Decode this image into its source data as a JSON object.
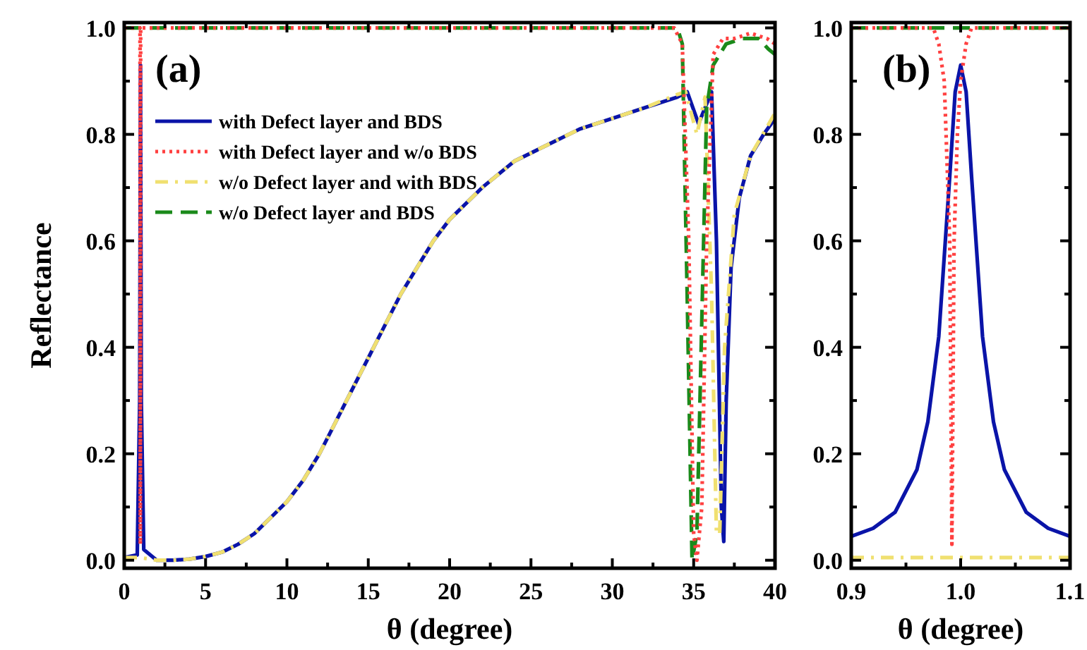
{
  "chart_data": [
    {
      "type": "line",
      "title": "(a)",
      "xlabel": "θ (degree)",
      "ylabel": "Reflectance",
      "legend": "top left",
      "xlim": [
        0,
        40
      ],
      "ylim": [
        -0.015,
        1.01
      ],
      "xticks": [
        0,
        {
          "value": 2.5,
          "label": null
        },
        5,
        {
          "value": 7.5,
          "label": null
        },
        10,
        {
          "value": 12.5,
          "label": null
        },
        15,
        {
          "value": 17.5,
          "label": null
        },
        20,
        {
          "value": 22.5,
          "label": null
        },
        25,
        {
          "value": 27.5,
          "label": null
        },
        30,
        {
          "value": 32.5,
          "label": null
        },
        35,
        {
          "value": 37.5,
          "label": null
        },
        40
      ],
      "yticks": [
        {
          "value": 0,
          "label": "0.0"
        },
        {
          "value": 0.1,
          "label": null
        },
        0.2,
        {
          "value": 0.3,
          "label": null
        },
        0.4,
        {
          "value": 0.5,
          "label": null
        },
        0.6,
        {
          "value": 0.7,
          "label": null
        },
        0.8,
        {
          "value": 0.9,
          "label": null
        },
        {
          "value": 1,
          "label": "1.0"
        }
      ],
      "series": [
        {
          "name": "with Defect layer and BDS",
          "color": "#0a14a8",
          "line_style": "solid",
          "x": [
            0,
            0.8,
            0.95,
            1.0,
            1.05,
            1.2,
            2,
            3,
            4,
            5,
            6,
            7,
            8,
            9,
            10,
            11,
            12,
            13,
            14,
            15,
            16,
            17,
            18,
            19,
            20,
            22,
            24,
            26,
            28,
            30,
            32,
            34,
            34.6,
            35.3,
            36.1,
            36.4,
            36.7,
            36.85,
            37.0,
            37.3,
            37.8,
            38.5,
            39.3,
            40
          ],
          "values": [
            0.005,
            0.01,
            0.3,
            0.93,
            0.3,
            0.02,
            0,
            0,
            0.002,
            0.007,
            0.015,
            0.03,
            0.05,
            0.08,
            0.11,
            0.15,
            0.2,
            0.26,
            0.32,
            0.38,
            0.44,
            0.5,
            0.55,
            0.6,
            0.64,
            0.7,
            0.75,
            0.78,
            0.81,
            0.83,
            0.85,
            0.87,
            0.88,
            0.82,
            0.88,
            0.6,
            0.1,
            0.035,
            0.3,
            0.55,
            0.68,
            0.76,
            0.8,
            0.83
          ]
        },
        {
          "name": "with Defect layer and w/o BDS",
          "color": "#ff4040",
          "line_style": "dotted",
          "x": [
            0,
            0.97,
            0.99,
            1.01,
            33.8,
            34.3,
            34.7,
            35.0,
            35.2,
            35.5,
            35.8,
            36.2,
            36.8,
            37.5,
            38.5,
            39.5,
            40
          ],
          "values": [
            1,
            1,
            0.03,
            1,
            1,
            0.97,
            0.6,
            0.05,
            0,
            0.1,
            0.6,
            0.95,
            0.98,
            0.98,
            0.99,
            0.98,
            0.97
          ]
        },
        {
          "name": "w/o Defect layer and with BDS",
          "color": "#f0e070",
          "line_style": "dashdot",
          "x": [
            0,
            1,
            2,
            3,
            4,
            5,
            6,
            7,
            8,
            9,
            10,
            11,
            12,
            13,
            14,
            15,
            16,
            17,
            18,
            19,
            20,
            22,
            24,
            26,
            28,
            30,
            32,
            34,
            34.5,
            35.2,
            35.7,
            36.1,
            36.4,
            36.6,
            36.9,
            37.5,
            38.5,
            40
          ],
          "values": [
            0.005,
            0.005,
            0,
            0,
            0.002,
            0.007,
            0.015,
            0.03,
            0.05,
            0.08,
            0.11,
            0.15,
            0.2,
            0.26,
            0.32,
            0.38,
            0.44,
            0.5,
            0.55,
            0.6,
            0.64,
            0.7,
            0.75,
            0.78,
            0.81,
            0.83,
            0.85,
            0.875,
            0.88,
            0.8,
            0.87,
            0.5,
            0.05,
            0.05,
            0.4,
            0.65,
            0.76,
            0.84
          ]
        },
        {
          "name": "w/o Defect layer and BDS",
          "color": "#1a8a1a",
          "line_style": "dashed",
          "x": [
            0,
            34.0,
            34.3,
            34.6,
            34.9,
            35.2,
            35.5,
            35.8,
            36.2,
            37,
            38,
            39,
            39.6,
            40
          ],
          "values": [
            1,
            1,
            0.97,
            0.5,
            0,
            0.05,
            0.45,
            0.85,
            0.93,
            0.97,
            0.98,
            0.98,
            0.96,
            0.95
          ]
        }
      ]
    },
    {
      "type": "line",
      "title": "(b)",
      "xlabel": "θ (degree)",
      "legend": false,
      "xlim": [
        0.9,
        1.1
      ],
      "ylim": [
        -0.015,
        1.01
      ],
      "xticks": [
        0.9,
        {
          "value": 0.95,
          "label": null
        },
        {
          "value": 1,
          "label": "1.0"
        },
        {
          "value": 1.05,
          "label": null
        },
        1.1
      ],
      "yticks": [
        {
          "value": 0,
          "label": "0.0"
        },
        {
          "value": 0.1,
          "label": null
        },
        0.2,
        {
          "value": 0.3,
          "label": null
        },
        0.4,
        {
          "value": 0.5,
          "label": null
        },
        0.6,
        {
          "value": 0.7,
          "label": null
        },
        0.8,
        {
          "value": 0.9,
          "label": null
        },
        {
          "value": 1,
          "label": "1.0"
        }
      ],
      "series": [
        {
          "color": "#0a14a8",
          "line_style": "solid",
          "x": [
            0.9,
            0.92,
            0.94,
            0.96,
            0.97,
            0.98,
            0.99,
            0.995,
            1.0,
            1.005,
            1.01,
            1.02,
            1.03,
            1.04,
            1.06,
            1.08,
            1.1
          ],
          "values": [
            0.045,
            0.06,
            0.09,
            0.17,
            0.26,
            0.42,
            0.72,
            0.88,
            0.93,
            0.88,
            0.72,
            0.42,
            0.26,
            0.17,
            0.09,
            0.06,
            0.045
          ]
        },
        {
          "color": "#ff4040",
          "line_style": "dotted",
          "x": [
            0.9,
            0.975,
            0.98,
            0.985,
            0.99,
            0.992,
            0.994,
            0.997,
            1.0,
            1.005,
            1.01,
            1.1
          ],
          "values": [
            1,
            1,
            0.97,
            0.9,
            0.6,
            0.03,
            0.6,
            0.8,
            0.9,
            0.97,
            1,
            1
          ]
        },
        {
          "color": "#f0e070",
          "line_style": "dashdot",
          "x": [
            0.9,
            1.1
          ],
          "values": [
            0.005,
            0.005
          ]
        },
        {
          "color": "#1a8a1a",
          "line_style": "dashed",
          "x": [
            0.9,
            1.1
          ],
          "values": [
            1,
            1
          ]
        }
      ]
    }
  ]
}
